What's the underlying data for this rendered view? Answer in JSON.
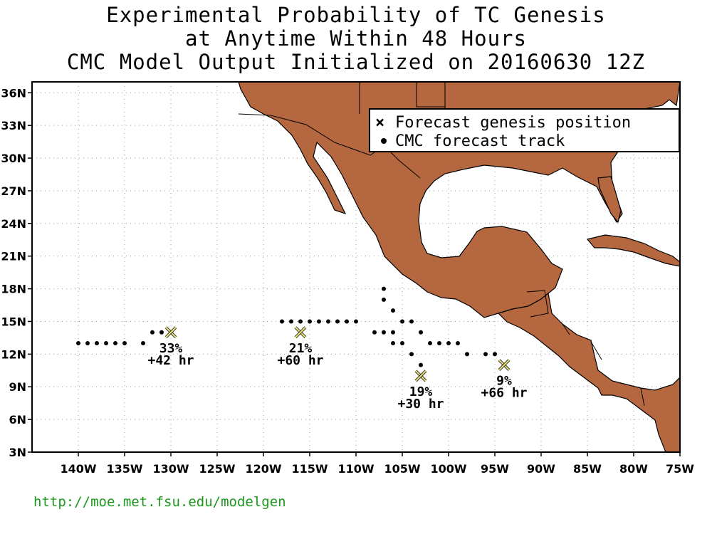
{
  "title_lines": [
    "Experimental Probability of TC Genesis",
    "at Anytime Within 48 Hours",
    "CMC Model Output Initialized on 20160630 12Z"
  ],
  "url": "http://moe.met.fsu.edu/modelgen",
  "legend": {
    "genesis": "Forecast genesis position",
    "track": "CMC forecast track"
  },
  "colors": {
    "land": "#b5683f",
    "marker": "#e8e070",
    "url": "#1a9a1a"
  },
  "map": {
    "lon_range": [
      -145,
      -75
    ],
    "lat_range": [
      3,
      37
    ],
    "x_ticks": [
      {
        "lon": -140,
        "label": "140W"
      },
      {
        "lon": -135,
        "label": "135W"
      },
      {
        "lon": -130,
        "label": "130W"
      },
      {
        "lon": -125,
        "label": "125W"
      },
      {
        "lon": -120,
        "label": "120W"
      },
      {
        "lon": -115,
        "label": "115W"
      },
      {
        "lon": -110,
        "label": "110W"
      },
      {
        "lon": -105,
        "label": "105W"
      },
      {
        "lon": -100,
        "label": "100W"
      },
      {
        "lon": -95,
        "label": "95W"
      },
      {
        "lon": -90,
        "label": "90W"
      },
      {
        "lon": -85,
        "label": "85W"
      },
      {
        "lon": -80,
        "label": "80W"
      },
      {
        "lon": -75,
        "label": "75W"
      }
    ],
    "y_ticks": [
      {
        "lat": 3,
        "label": "3N"
      },
      {
        "lat": 6,
        "label": "6N"
      },
      {
        "lat": 9,
        "label": "9N"
      },
      {
        "lat": 12,
        "label": "12N"
      },
      {
        "lat": 15,
        "label": "15N"
      },
      {
        "lat": 18,
        "label": "18N"
      },
      {
        "lat": 21,
        "label": "21N"
      },
      {
        "lat": 24,
        "label": "24N"
      },
      {
        "lat": 27,
        "label": "27N"
      },
      {
        "lat": 30,
        "label": "30N"
      },
      {
        "lat": 33,
        "label": "33N"
      },
      {
        "lat": 36,
        "label": "36N"
      }
    ],
    "genesis": [
      {
        "lon": -130,
        "lat": 14,
        "prob": "33%",
        "hour": "+42 hr"
      },
      {
        "lon": -116,
        "lat": 14,
        "prob": "21%",
        "hour": "+60 hr"
      },
      {
        "lon": -103,
        "lat": 10,
        "prob": "19%",
        "hour": "+30 hr"
      },
      {
        "lon": -94,
        "lat": 11,
        "prob": "9%",
        "hour": "+66 hr"
      }
    ],
    "tracks": [
      [
        [
          -140,
          13
        ],
        [
          -139,
          13
        ],
        [
          -138,
          13
        ],
        [
          -137,
          13
        ],
        [
          -136,
          13
        ],
        [
          -135,
          13
        ],
        [
          -133,
          13
        ],
        [
          -132,
          14
        ],
        [
          -131,
          14
        ],
        [
          -130,
          14
        ]
      ],
      [
        [
          -118,
          15
        ],
        [
          -117,
          15
        ],
        [
          -116,
          15
        ],
        [
          -115,
          15
        ],
        [
          -114,
          15
        ],
        [
          -113,
          15
        ],
        [
          -112,
          15
        ],
        [
          -111,
          15
        ],
        [
          -110,
          15
        ],
        [
          -108,
          14
        ],
        [
          -107,
          14
        ],
        [
          -106,
          14
        ]
      ],
      [
        [
          -107,
          18
        ],
        [
          -107,
          17
        ],
        [
          -106,
          16
        ],
        [
          -105,
          15
        ],
        [
          -104,
          15
        ],
        [
          -103,
          14
        ],
        [
          -102,
          13
        ],
        [
          -101,
          13
        ],
        [
          -100,
          13
        ]
      ],
      [
        [
          -106,
          13
        ],
        [
          -105,
          13
        ],
        [
          -104,
          12
        ],
        [
          -103,
          11
        ]
      ],
      [
        [
          -99,
          13
        ],
        [
          -98,
          12
        ],
        [
          -96,
          12
        ],
        [
          -95,
          12
        ]
      ]
    ]
  }
}
